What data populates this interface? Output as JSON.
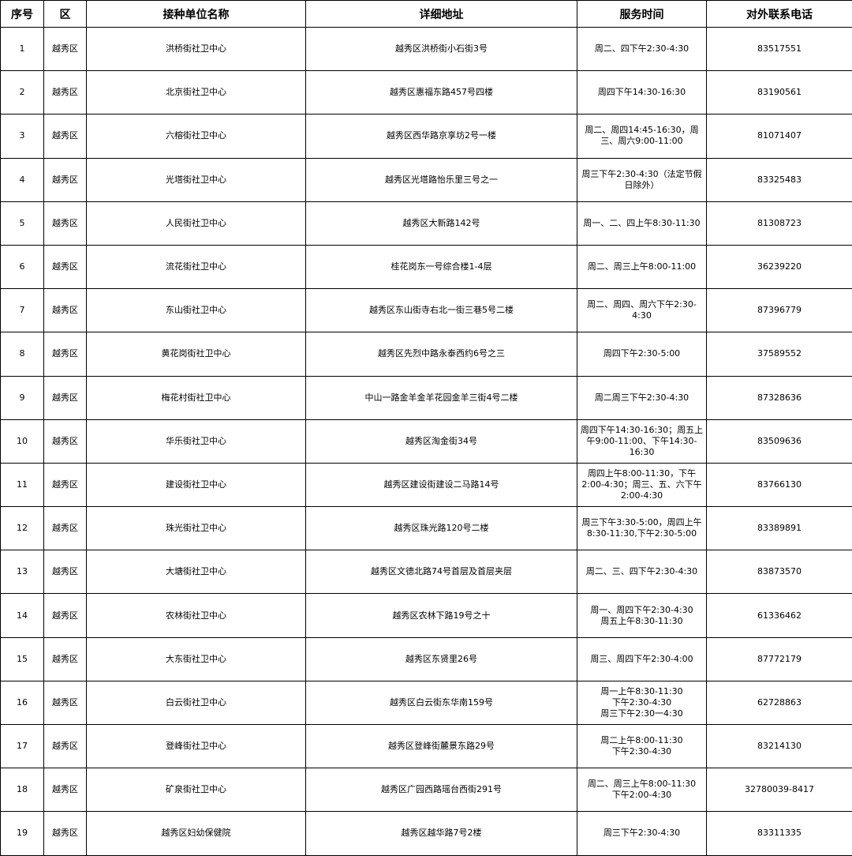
{
  "table": {
    "headers": [
      "序号",
      "区",
      "接种单位名称",
      "详细地址",
      "服务时间",
      "对外联系电话"
    ],
    "rows": [
      [
        "1",
        "越秀区",
        "洪桥街社卫中心",
        "越秀区洪桥街小石街3号",
        "周二、四下午2:30-4:30",
        "83517551"
      ],
      [
        "2",
        "越秀区",
        "北京街社卫中心",
        "越秀区惠福东路457号四楼",
        "周四下午14:30-16:30",
        "83190561"
      ],
      [
        "3",
        "越秀区",
        "六榕街社卫中心",
        "越秀区西华路京享坊2号一楼",
        "周二、周四14:45-16:30，周三、周六9:00-11:00",
        "81071407"
      ],
      [
        "4",
        "越秀区",
        "光塔街社卫中心",
        "越秀区光塔路怡乐里三号之一",
        "周三下午2:30-4:30（法定节假日除外）",
        "83325483"
      ],
      [
        "5",
        "越秀区",
        "人民街社卫中心",
        "越秀区大新路142号",
        "周一、二、四上午8:30-11:30",
        "81308723"
      ],
      [
        "6",
        "越秀区",
        "流花街社卫中心",
        "桂花岗东一号综合楼1-4层",
        "周二、周三上午8:00-11:00",
        "36239220"
      ],
      [
        "7",
        "越秀区",
        "东山街社卫中心",
        "越秀区东山街寺右北一街三巷5号二楼",
        "周二、周四、周六下午2:30-4:30",
        "87396779"
      ],
      [
        "8",
        "越秀区",
        "黄花岗街社卫中心",
        "越秀区先烈中路永泰西约6号之三",
        "周四下午2:30-5:00",
        "37589552"
      ],
      [
        "9",
        "越秀区",
        "梅花村街社卫中心",
        "中山一路金羊金羊花园金羊三街4号二楼",
        "周二周三下午2:30-4:30",
        "87328636"
      ],
      [
        "10",
        "越秀区",
        "华乐街社卫中心",
        "越秀区淘金街34号",
        "周四下午14:30-16:30；周五上午9:00-11:00、下午14:30-16:30",
        "83509636"
      ],
      [
        "11",
        "越秀区",
        "建设街社卫中心",
        "越秀区建设街建设二马路14号",
        "周四上午8:00-11:30，下午2:00-4:30；周三、五、六下午2:00-4:30",
        "83766130"
      ],
      [
        "12",
        "越秀区",
        "珠光街社卫中心",
        "越秀区珠光路120号二楼",
        "周三下午3:30-5:00，周四上午8:30-11:30,下午2:30-5:00",
        "83389891"
      ],
      [
        "13",
        "越秀区",
        "大塘街社卫中心",
        "越秀区文德北路74号首层及首层夹层",
        "周二、三、四下午2:30-4:30",
        "83873570"
      ],
      [
        "14",
        "越秀区",
        "农林街社卫中心",
        "越秀区农林下路19号之十",
        "周一、周四下午2:30-4:30\n周五上午8:30-11:30",
        "61336462"
      ],
      [
        "15",
        "越秀区",
        "大东街社卫中心",
        "越秀区东贤里26号",
        "周三、周四下午2:30-4:00",
        "87772179"
      ],
      [
        "16",
        "越秀区",
        "白云街社卫中心",
        "越秀区白云街东华南159号",
        "周一上午8:30-11:30\n下午2:30-4:30\n周三下午2:30一4:30",
        "62728863"
      ],
      [
        "17",
        "越秀区",
        "登峰街社卫中心",
        "越秀区登峰街麓景东路29号",
        "周二上午8:00-11:30\n下午2:30-4:30",
        "83214130"
      ],
      [
        "18",
        "越秀区",
        "矿泉街社卫中心",
        "越秀区广园西路瑶台西街291号",
        "周二、周三上午8:00-11:30\n下午2:00-4:30",
        "32780039-8417"
      ],
      [
        "19",
        "越秀区",
        "越秀区妇幼保健院",
        "越秀区越华路7号2楼",
        "周三下午2:30-4:30",
        "83311335"
      ]
    ]
  }
}
